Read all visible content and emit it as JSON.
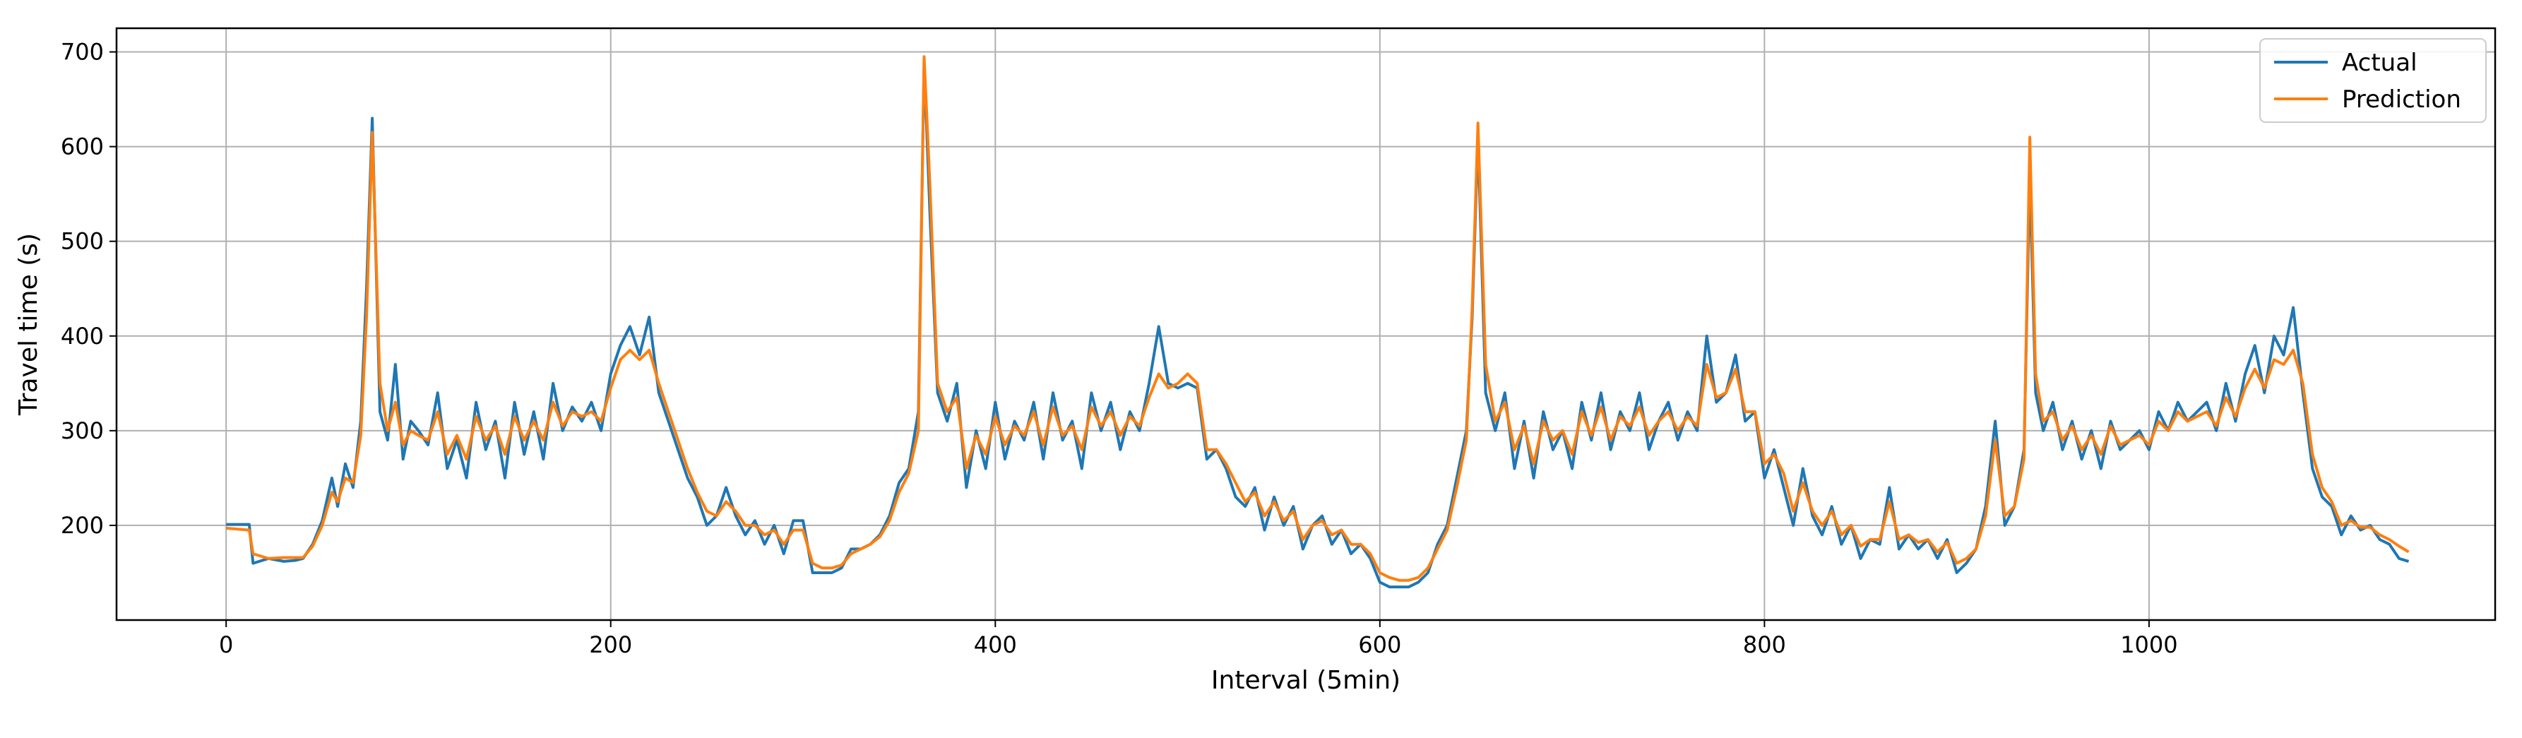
{
  "chart_data": {
    "type": "line",
    "title": "",
    "xlabel": "Interval (5min)",
    "ylabel": "Travel time (s)",
    "xlim": [
      -57,
      1180
    ],
    "ylim": [
      100,
      725
    ],
    "xticks": [
      0,
      200,
      400,
      600,
      800,
      1000
    ],
    "yticks": [
      200,
      300,
      400,
      500,
      600,
      700
    ],
    "grid": true,
    "legend_position": "top-right",
    "series": [
      {
        "name": "Actual",
        "color": "#1f77b4",
        "x": [
          0,
          12,
          14,
          22,
          30,
          36,
          40,
          45,
          50,
          55,
          58,
          62,
          66,
          70,
          73,
          76,
          80,
          84,
          88,
          92,
          96,
          100,
          105,
          110,
          115,
          120,
          125,
          130,
          135,
          140,
          145,
          150,
          155,
          160,
          165,
          170,
          175,
          180,
          185,
          190,
          195,
          200,
          205,
          210,
          215,
          220,
          225,
          230,
          235,
          240,
          245,
          250,
          255,
          260,
          265,
          270,
          275,
          280,
          285,
          290,
          295,
          300,
          305,
          310,
          315,
          320,
          325,
          330,
          335,
          340,
          345,
          350,
          355,
          360,
          363,
          366,
          370,
          375,
          380,
          385,
          390,
          395,
          400,
          405,
          410,
          415,
          420,
          425,
          430,
          435,
          440,
          445,
          450,
          455,
          460,
          465,
          470,
          475,
          480,
          485,
          490,
          495,
          500,
          505,
          510,
          515,
          520,
          525,
          530,
          535,
          540,
          545,
          550,
          555,
          560,
          565,
          570,
          575,
          580,
          585,
          590,
          595,
          600,
          605,
          610,
          615,
          620,
          625,
          630,
          635,
          640,
          645,
          648,
          651,
          655,
          660,
          665,
          670,
          675,
          680,
          685,
          690,
          695,
          700,
          705,
          710,
          715,
          720,
          725,
          730,
          735,
          740,
          745,
          750,
          755,
          760,
          765,
          770,
          775,
          780,
          785,
          790,
          795,
          800,
          805,
          810,
          815,
          820,
          825,
          830,
          835,
          840,
          845,
          850,
          855,
          860,
          865,
          870,
          875,
          880,
          885,
          890,
          895,
          900,
          905,
          910,
          915,
          920,
          925,
          930,
          935,
          938,
          941,
          945,
          950,
          955,
          960,
          965,
          970,
          975,
          980,
          985,
          990,
          995,
          1000,
          1005,
          1010,
          1015,
          1020,
          1025,
          1030,
          1035,
          1040,
          1045,
          1050,
          1055,
          1060,
          1065,
          1070,
          1075,
          1080,
          1085,
          1090,
          1095,
          1100,
          1105,
          1110,
          1115,
          1120,
          1125,
          1130,
          1135
        ],
        "values": [
          201,
          201,
          160,
          165,
          162,
          163,
          165,
          180,
          205,
          250,
          220,
          265,
          240,
          310,
          450,
          630,
          320,
          290,
          370,
          270,
          310,
          300,
          285,
          340,
          260,
          290,
          250,
          330,
          280,
          310,
          250,
          330,
          275,
          320,
          270,
          350,
          300,
          325,
          310,
          330,
          300,
          360,
          390,
          410,
          380,
          420,
          340,
          310,
          280,
          250,
          230,
          200,
          210,
          240,
          210,
          190,
          205,
          180,
          200,
          170,
          205,
          205,
          150,
          150,
          150,
          155,
          175,
          175,
          180,
          190,
          210,
          245,
          260,
          320,
          690,
          530,
          340,
          310,
          350,
          240,
          300,
          260,
          330,
          270,
          310,
          290,
          330,
          270,
          340,
          290,
          310,
          260,
          340,
          300,
          330,
          280,
          320,
          300,
          350,
          410,
          350,
          345,
          350,
          345,
          270,
          280,
          260,
          230,
          220,
          240,
          195,
          230,
          200,
          220,
          175,
          200,
          210,
          180,
          195,
          170,
          180,
          165,
          140,
          135,
          135,
          135,
          140,
          150,
          180,
          200,
          250,
          300,
          420,
          610,
          340,
          300,
          340,
          260,
          310,
          250,
          320,
          280,
          300,
          260,
          330,
          290,
          340,
          280,
          320,
          300,
          340,
          280,
          310,
          330,
          290,
          320,
          300,
          400,
          330,
          340,
          380,
          310,
          320,
          250,
          280,
          240,
          200,
          260,
          210,
          190,
          220,
          180,
          200,
          165,
          185,
          180,
          240,
          175,
          190,
          175,
          185,
          165,
          185,
          150,
          160,
          175,
          220,
          310,
          200,
          220,
          280,
          570,
          340,
          300,
          330,
          280,
          310,
          270,
          300,
          260,
          310,
          280,
          290,
          300,
          280,
          320,
          300,
          330,
          310,
          320,
          330,
          300,
          350,
          310,
          360,
          390,
          340,
          400,
          380,
          430,
          340,
          260,
          230,
          220,
          190,
          210,
          195,
          200,
          185,
          180,
          165,
          162
        ],
        "_": ""
      },
      {
        "name": "Prediction",
        "color": "#ff7f0e",
        "x": [
          0,
          12,
          14,
          22,
          30,
          36,
          40,
          45,
          50,
          55,
          58,
          62,
          66,
          70,
          73,
          76,
          80,
          84,
          88,
          92,
          96,
          100,
          105,
          110,
          115,
          120,
          125,
          130,
          135,
          140,
          145,
          150,
          155,
          160,
          165,
          170,
          175,
          180,
          185,
          190,
          195,
          200,
          205,
          210,
          215,
          220,
          225,
          230,
          235,
          240,
          245,
          250,
          255,
          260,
          265,
          270,
          275,
          280,
          285,
          290,
          295,
          300,
          305,
          310,
          315,
          320,
          325,
          330,
          335,
          340,
          345,
          350,
          355,
          360,
          363,
          366,
          370,
          375,
          380,
          385,
          390,
          395,
          400,
          405,
          410,
          415,
          420,
          425,
          430,
          435,
          440,
          445,
          450,
          455,
          460,
          465,
          470,
          475,
          480,
          485,
          490,
          495,
          500,
          505,
          510,
          515,
          520,
          525,
          530,
          535,
          540,
          545,
          550,
          555,
          560,
          565,
          570,
          575,
          580,
          585,
          590,
          595,
          600,
          605,
          610,
          615,
          620,
          625,
          630,
          635,
          640,
          645,
          648,
          651,
          655,
          660,
          665,
          670,
          675,
          680,
          685,
          690,
          695,
          700,
          705,
          710,
          715,
          720,
          725,
          730,
          735,
          740,
          745,
          750,
          755,
          760,
          765,
          770,
          775,
          780,
          785,
          790,
          795,
          800,
          805,
          810,
          815,
          820,
          825,
          830,
          835,
          840,
          845,
          850,
          855,
          860,
          865,
          870,
          875,
          880,
          885,
          890,
          895,
          900,
          905,
          910,
          915,
          920,
          925,
          930,
          935,
          938,
          941,
          945,
          950,
          955,
          960,
          965,
          970,
          975,
          980,
          985,
          990,
          995,
          1000,
          1005,
          1010,
          1015,
          1020,
          1025,
          1030,
          1035,
          1040,
          1045,
          1050,
          1055,
          1060,
          1065,
          1070,
          1075,
          1080,
          1085,
          1090,
          1095,
          1100,
          1105,
          1110,
          1115,
          1120,
          1125,
          1130,
          1135
        ],
        "values": [
          197,
          195,
          170,
          165,
          166,
          166,
          166,
          178,
          200,
          235,
          225,
          250,
          245,
          295,
          420,
          615,
          350,
          300,
          330,
          285,
          300,
          295,
          290,
          320,
          275,
          295,
          270,
          315,
          290,
          305,
          275,
          315,
          290,
          310,
          290,
          330,
          305,
          320,
          315,
          320,
          310,
          345,
          375,
          385,
          375,
          385,
          350,
          320,
          290,
          260,
          235,
          215,
          210,
          225,
          215,
          200,
          200,
          190,
          195,
          180,
          195,
          195,
          160,
          155,
          155,
          158,
          170,
          175,
          180,
          188,
          205,
          235,
          255,
          300,
          695,
          560,
          350,
          320,
          335,
          260,
          295,
          275,
          315,
          285,
          305,
          295,
          320,
          285,
          325,
          295,
          305,
          280,
          325,
          305,
          320,
          295,
          315,
          305,
          335,
          360,
          345,
          350,
          360,
          350,
          280,
          280,
          265,
          245,
          225,
          235,
          210,
          225,
          205,
          215,
          185,
          200,
          205,
          190,
          195,
          180,
          180,
          170,
          150,
          145,
          142,
          142,
          145,
          155,
          175,
          195,
          240,
          290,
          430,
          625,
          370,
          310,
          330,
          280,
          305,
          265,
          310,
          290,
          300,
          275,
          320,
          295,
          325,
          290,
          315,
          305,
          325,
          295,
          310,
          320,
          300,
          315,
          305,
          370,
          335,
          340,
          365,
          320,
          320,
          265,
          275,
          255,
          215,
          245,
          215,
          200,
          215,
          190,
          200,
          178,
          185,
          185,
          225,
          185,
          190,
          182,
          185,
          172,
          182,
          160,
          165,
          175,
          210,
          290,
          210,
          220,
          270,
          610,
          360,
          310,
          320,
          290,
          305,
          280,
          295,
          275,
          305,
          285,
          290,
          295,
          285,
          310,
          300,
          320,
          310,
          315,
          320,
          305,
          335,
          315,
          345,
          365,
          345,
          375,
          370,
          385,
          350,
          275,
          240,
          225,
          200,
          205,
          198,
          198,
          190,
          185,
          178,
          172
        ],
        "_": ""
      }
    ]
  }
}
